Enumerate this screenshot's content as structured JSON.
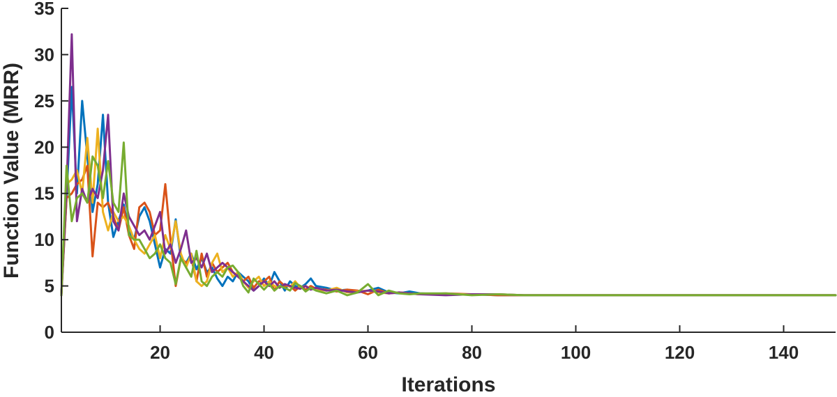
{
  "chart_data": {
    "type": "line",
    "title": "",
    "xlabel": "Iterations",
    "ylabel": "Function Value (MRR)",
    "xlim": [
      1,
      150
    ],
    "ylim": [
      0,
      35
    ],
    "xticks": [
      20,
      40,
      60,
      80,
      100,
      120,
      140
    ],
    "yticks": [
      0,
      5,
      10,
      15,
      20,
      25,
      30,
      35
    ],
    "grid": false,
    "legend": "none",
    "series": [
      {
        "color": "#0072BD",
        "x": [
          1,
          2,
          3,
          4,
          5,
          6,
          7,
          8,
          9,
          10,
          11,
          12,
          13,
          14,
          15,
          16,
          17,
          18,
          19,
          20,
          21,
          22,
          23,
          24,
          25,
          26,
          27,
          28,
          29,
          30,
          31,
          32,
          33,
          34,
          35,
          36,
          37,
          38,
          39,
          40,
          41,
          42,
          43,
          44,
          45,
          46,
          47,
          48,
          49,
          50,
          52,
          54,
          56,
          58,
          60,
          62,
          64,
          66,
          68,
          70,
          75,
          80,
          85,
          90,
          95,
          100,
          110,
          120,
          130,
          140,
          150
        ],
        "y": [
          4.2,
          14.5,
          26.5,
          15.0,
          25.0,
          19.0,
          13.0,
          16.0,
          23.5,
          14.0,
          10.3,
          12.0,
          13.8,
          11.0,
          10.0,
          12.5,
          13.5,
          12.0,
          9.5,
          7.0,
          9.0,
          8.5,
          12.2,
          8.0,
          7.5,
          8.5,
          6.8,
          8.0,
          6.5,
          7.0,
          5.8,
          5.0,
          6.0,
          5.5,
          6.5,
          6.0,
          5.5,
          4.5,
          5.0,
          5.8,
          5.0,
          6.5,
          5.5,
          4.5,
          5.5,
          5.0,
          4.8,
          5.2,
          5.8,
          5.0,
          4.8,
          4.5,
          4.6,
          4.4,
          4.5,
          4.8,
          4.3,
          4.2,
          4.4,
          4.2,
          4.1,
          4.1,
          4.0,
          4.0,
          4.0,
          4.0,
          4.0,
          4.0,
          4.0,
          4.0,
          4.0
        ]
      },
      {
        "color": "#D95319",
        "x": [
          1,
          2,
          3,
          4,
          5,
          6,
          7,
          8,
          9,
          10,
          11,
          12,
          13,
          14,
          15,
          16,
          17,
          18,
          19,
          20,
          21,
          22,
          23,
          24,
          25,
          26,
          27,
          28,
          29,
          30,
          31,
          32,
          33,
          34,
          35,
          36,
          37,
          38,
          39,
          40,
          41,
          42,
          43,
          44,
          45,
          46,
          47,
          48,
          49,
          50,
          52,
          54,
          56,
          58,
          60,
          62,
          64,
          66,
          68,
          70,
          75,
          80,
          85,
          90,
          95,
          100,
          110,
          120,
          130,
          140,
          150
        ],
        "y": [
          4.0,
          14.5,
          15.0,
          16.0,
          16.5,
          18.0,
          8.2,
          14.0,
          13.5,
          14.0,
          12.5,
          11.0,
          13.5,
          10.5,
          9.0,
          13.5,
          14.0,
          13.0,
          10.5,
          11.0,
          16.0,
          10.0,
          5.0,
          8.0,
          7.5,
          8.0,
          5.5,
          8.5,
          6.0,
          7.5,
          6.5,
          7.0,
          7.5,
          6.5,
          6.0,
          5.5,
          6.0,
          4.8,
          5.5,
          5.5,
          6.0,
          4.5,
          5.5,
          5.0,
          5.0,
          4.5,
          5.0,
          4.6,
          5.0,
          4.7,
          4.6,
          4.4,
          4.6,
          4.5,
          4.1,
          4.6,
          4.2,
          4.3,
          4.2,
          4.1,
          4.2,
          4.1,
          4.0,
          4.0,
          4.0,
          4.0,
          4.0,
          4.0,
          4.0,
          4.0,
          4.0
        ]
      },
      {
        "color": "#EDB120",
        "x": [
          1,
          2,
          3,
          4,
          5,
          6,
          7,
          8,
          9,
          10,
          11,
          12,
          13,
          14,
          15,
          16,
          17,
          18,
          19,
          20,
          21,
          22,
          23,
          24,
          25,
          26,
          27,
          28,
          29,
          30,
          31,
          32,
          33,
          34,
          35,
          36,
          37,
          38,
          39,
          40,
          41,
          42,
          43,
          44,
          45,
          46,
          47,
          48,
          49,
          50,
          52,
          54,
          56,
          58,
          60,
          62,
          64,
          66,
          68,
          70,
          75,
          80,
          85,
          90,
          95,
          100,
          110,
          120,
          130,
          140,
          150
        ],
        "y": [
          4.0,
          16.0,
          16.5,
          17.5,
          15.0,
          21.0,
          14.0,
          22.0,
          13.0,
          11.0,
          13.0,
          12.0,
          12.5,
          11.5,
          10.0,
          9.0,
          8.5,
          9.5,
          10.5,
          8.0,
          10.5,
          9.0,
          12.0,
          8.5,
          7.0,
          8.5,
          5.5,
          5.0,
          5.5,
          7.5,
          8.5,
          6.5,
          7.0,
          6.0,
          6.5,
          5.5,
          4.8,
          5.5,
          6.0,
          5.0,
          5.5,
          5.0,
          4.8,
          5.2,
          4.9,
          5.5,
          4.8,
          5.0,
          4.7,
          4.6,
          4.5,
          4.8,
          4.3,
          4.4,
          4.5,
          4.3,
          4.2,
          4.3,
          4.2,
          4.1,
          4.1,
          4.1,
          4.1,
          4.0,
          4.0,
          4.0,
          4.0,
          4.0,
          4.0,
          4.0,
          4.0
        ]
      },
      {
        "color": "#7E2F8E",
        "x": [
          1,
          2,
          3,
          4,
          5,
          6,
          7,
          8,
          9,
          10,
          11,
          12,
          13,
          14,
          15,
          16,
          17,
          18,
          19,
          20,
          21,
          22,
          23,
          24,
          25,
          26,
          27,
          28,
          29,
          30,
          31,
          32,
          33,
          34,
          35,
          36,
          37,
          38,
          39,
          40,
          41,
          42,
          43,
          44,
          45,
          46,
          47,
          48,
          49,
          50,
          52,
          54,
          56,
          58,
          60,
          62,
          64,
          66,
          68,
          70,
          75,
          80,
          85,
          90,
          95,
          100,
          110,
          120,
          130,
          140,
          150
        ],
        "y": [
          4.0,
          15.5,
          32.2,
          12.0,
          15.5,
          14.0,
          15.5,
          14.5,
          17.5,
          23.5,
          12.0,
          11.0,
          15.0,
          12.5,
          11.5,
          10.5,
          11.0,
          10.0,
          11.5,
          13.0,
          8.5,
          9.5,
          7.5,
          9.0,
          11.0,
          7.5,
          8.0,
          7.0,
          8.5,
          6.5,
          7.0,
          7.5,
          7.0,
          6.5,
          6.0,
          5.5,
          5.0,
          4.5,
          5.0,
          5.5,
          5.0,
          5.5,
          4.8,
          5.2,
          5.0,
          4.8,
          4.7,
          5.0,
          4.6,
          4.8,
          4.5,
          4.6,
          4.4,
          4.3,
          4.5,
          4.4,
          4.2,
          4.3,
          4.2,
          4.1,
          4.0,
          4.1,
          4.1,
          4.0,
          4.0,
          4.0,
          4.0,
          4.0,
          4.0,
          4.0,
          4.0
        ]
      },
      {
        "color": "#77AC30",
        "x": [
          1,
          2,
          3,
          4,
          5,
          6,
          7,
          8,
          9,
          10,
          11,
          12,
          13,
          14,
          15,
          16,
          17,
          18,
          19,
          20,
          21,
          22,
          23,
          24,
          25,
          26,
          27,
          28,
          29,
          30,
          31,
          32,
          33,
          34,
          35,
          36,
          37,
          38,
          39,
          40,
          41,
          42,
          43,
          44,
          45,
          46,
          47,
          48,
          49,
          50,
          52,
          54,
          56,
          58,
          60,
          62,
          64,
          66,
          68,
          70,
          75,
          80,
          85,
          90,
          95,
          100,
          110,
          120,
          130,
          140,
          150
        ],
        "y": [
          4.0,
          18.0,
          12.0,
          14.5,
          15.0,
          14.0,
          19.0,
          18.0,
          14.5,
          18.5,
          14.0,
          13.0,
          20.5,
          10.5,
          10.0,
          10.0,
          9.0,
          8.0,
          8.5,
          9.5,
          8.0,
          7.5,
          5.2,
          8.0,
          7.0,
          6.0,
          8.8,
          5.5,
          5.0,
          6.0,
          6.5,
          6.0,
          7.0,
          7.2,
          6.5,
          5.0,
          4.3,
          5.8,
          5.2,
          4.6,
          5.2,
          4.5,
          5.0,
          4.8,
          4.5,
          5.3,
          5.0,
          4.4,
          4.8,
          4.5,
          4.2,
          4.5,
          4.0,
          4.3,
          5.2,
          4.0,
          4.5,
          4.2,
          4.1,
          4.2,
          4.2,
          4.0,
          4.1,
          4.0,
          4.0,
          4.0,
          4.0,
          4.0,
          4.0,
          4.0,
          4.0
        ]
      }
    ]
  }
}
